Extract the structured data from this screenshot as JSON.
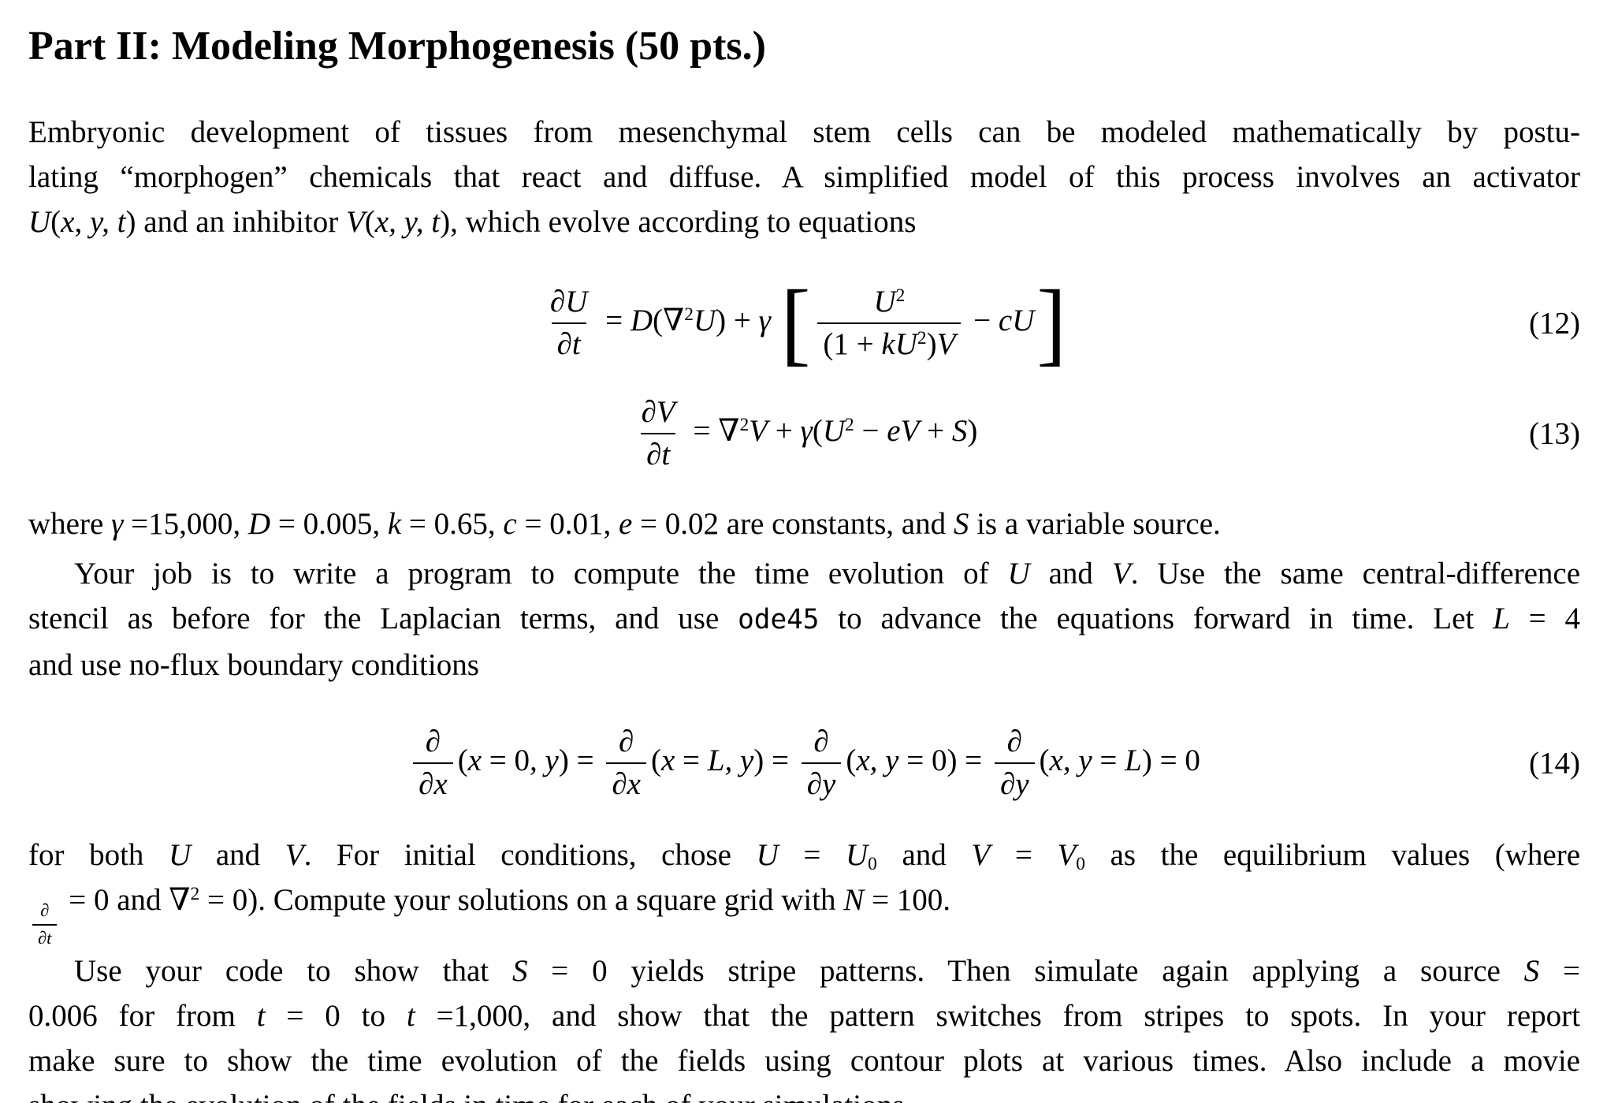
{
  "title": "Part II: Modeling Morphogenesis (50 pts.)",
  "intro": {
    "lines": [
      [
        {
          "t": "Embryonic development of tissues from mesenchymal stem cells can be modeled mathematically by postu-",
          "s": "rm"
        }
      ],
      [
        {
          "t": "lating “morphogen” chemicals that react and diffuse. A simplified model of this process involves an activator",
          "s": "rm"
        }
      ],
      [
        {
          "t": "U",
          "s": "it"
        },
        {
          "t": "(",
          "s": "rm"
        },
        {
          "t": "x, y, t",
          "s": "it"
        },
        {
          "t": ")",
          "s": "rm"
        },
        {
          "t": " and an inhibitor ",
          "s": "rm"
        },
        {
          "t": "V",
          "s": "it"
        },
        {
          "t": "(",
          "s": "rm"
        },
        {
          "t": "x, y, t",
          "s": "it"
        },
        {
          "t": ")",
          "s": "rm"
        },
        {
          "t": ", which evolve according to equations",
          "s": "rm"
        }
      ]
    ]
  },
  "equations": {
    "eq12": {
      "number": "(12)",
      "body": [
        {
          "frac": {
            "num": [
              {
                "t": "∂U",
                "s": "it"
              }
            ],
            "den": [
              {
                "t": "∂t",
                "s": "it"
              }
            ]
          }
        },
        {
          "t": " = ",
          "s": "rm"
        },
        {
          "t": "D",
          "s": "it"
        },
        {
          "t": "(∇",
          "s": "rm"
        },
        {
          "t": "2",
          "s": "sup"
        },
        {
          "t": "U",
          "s": "it"
        },
        {
          "t": ") + ",
          "s": "rm"
        },
        {
          "t": "γ ",
          "s": "it"
        },
        {
          "t": "[",
          "s": "bigbr"
        },
        {
          "frac": {
            "num": [
              {
                "t": "U",
                "s": "it"
              },
              {
                "t": "2",
                "s": "sup"
              }
            ],
            "den": [
              {
                "t": "(1 + ",
                "s": "rm"
              },
              {
                "t": "kU",
                "s": "it"
              },
              {
                "t": "2",
                "s": "sup"
              },
              {
                "t": ")",
                "s": "rm"
              },
              {
                "t": "V",
                "s": "it"
              }
            ]
          }
        },
        {
          "t": " − ",
          "s": "rm"
        },
        {
          "t": "cU",
          "s": "it"
        },
        {
          "t": "]",
          "s": "bigbr"
        }
      ]
    },
    "eq13": {
      "number": "(13)",
      "body": [
        {
          "frac": {
            "num": [
              {
                "t": "∂V",
                "s": "it"
              }
            ],
            "den": [
              {
                "t": "∂t",
                "s": "it"
              }
            ]
          }
        },
        {
          "t": " = ∇",
          "s": "rm"
        },
        {
          "t": "2",
          "s": "sup"
        },
        {
          "t": "V",
          "s": "it"
        },
        {
          "t": " + ",
          "s": "rm"
        },
        {
          "t": "γ",
          "s": "it"
        },
        {
          "t": "(",
          "s": "rm"
        },
        {
          "t": "U",
          "s": "it"
        },
        {
          "t": "2",
          "s": "sup"
        },
        {
          "t": " − ",
          "s": "rm"
        },
        {
          "t": "eV",
          "s": "it"
        },
        {
          "t": " + ",
          "s": "rm"
        },
        {
          "t": "S",
          "s": "it"
        },
        {
          "t": ")",
          "s": "rm"
        }
      ]
    },
    "eq14": {
      "number": "(14)",
      "body": [
        {
          "frac": {
            "num": [
              {
                "t": "∂",
                "s": "it"
              }
            ],
            "den": [
              {
                "t": "∂x",
                "s": "it"
              }
            ]
          }
        },
        {
          "t": "(",
          "s": "rm"
        },
        {
          "t": "x",
          "s": "it"
        },
        {
          "t": " = 0",
          "s": "rm"
        },
        {
          "t": ", y",
          "s": "it"
        },
        {
          "t": ") = ",
          "s": "rm"
        },
        {
          "frac": {
            "num": [
              {
                "t": "∂",
                "s": "it"
              }
            ],
            "den": [
              {
                "t": "∂x",
                "s": "it"
              }
            ]
          }
        },
        {
          "t": "(",
          "s": "rm"
        },
        {
          "t": "x",
          "s": "it"
        },
        {
          "t": " = ",
          "s": "rm"
        },
        {
          "t": "L, y",
          "s": "it"
        },
        {
          "t": ") = ",
          "s": "rm"
        },
        {
          "frac": {
            "num": [
              {
                "t": "∂",
                "s": "it"
              }
            ],
            "den": [
              {
                "t": "∂y",
                "s": "it"
              }
            ]
          }
        },
        {
          "t": "(",
          "s": "rm"
        },
        {
          "t": "x, y",
          "s": "it"
        },
        {
          "t": " = 0) = ",
          "s": "rm"
        },
        {
          "frac": {
            "num": [
              {
                "t": "∂",
                "s": "it"
              }
            ],
            "den": [
              {
                "t": "∂y",
                "s": "it"
              }
            ]
          }
        },
        {
          "t": "(",
          "s": "rm"
        },
        {
          "t": "x, y",
          "s": "it"
        },
        {
          "t": " = ",
          "s": "rm"
        },
        {
          "t": "L",
          "s": "it"
        },
        {
          "t": ") = 0",
          "s": "rm"
        }
      ]
    }
  },
  "constants": {
    "segs": [
      {
        "t": "where ",
        "s": "rm"
      },
      {
        "t": "γ",
        "s": "it"
      },
      {
        "t": " =15,000, ",
        "s": "rm"
      },
      {
        "t": "D",
        "s": "it"
      },
      {
        "t": " = 0.005, ",
        "s": "rm"
      },
      {
        "t": "k",
        "s": "it"
      },
      {
        "t": " = 0.65, ",
        "s": "rm"
      },
      {
        "t": "c",
        "s": "it"
      },
      {
        "t": " = 0.01, ",
        "s": "rm"
      },
      {
        "t": "e",
        "s": "it"
      },
      {
        "t": " = 0.02 are constants, and ",
        "s": "rm"
      },
      {
        "t": "S",
        "s": "it"
      },
      {
        "t": " is a variable source.",
        "s": "rm"
      }
    ]
  },
  "job": {
    "lines": [
      [
        {
          "t": "Your job is to write a program to compute the time evolution of ",
          "s": "rm"
        },
        {
          "t": "U",
          "s": "it"
        },
        {
          "t": " and ",
          "s": "rm"
        },
        {
          "t": "V",
          "s": "it"
        },
        {
          "t": ". Use the same central-difference",
          "s": "rm"
        }
      ],
      [
        {
          "t": "stencil as before for the Laplacian terms, and use ",
          "s": "rm"
        },
        {
          "t": "ode45",
          "s": "tt"
        },
        {
          "t": " to advance the equations forward in time. Let ",
          "s": "rm"
        },
        {
          "t": "L",
          "s": "it"
        },
        {
          "t": " = 4",
          "s": "rm"
        }
      ],
      [
        {
          "t": "and use no-flux boundary conditions",
          "s": "rm"
        }
      ]
    ]
  },
  "initial": {
    "lines": [
      [
        {
          "t": "for both ",
          "s": "rm"
        },
        {
          "t": "U",
          "s": "it"
        },
        {
          "t": " and ",
          "s": "rm"
        },
        {
          "t": "V",
          "s": "it"
        },
        {
          "t": ". For initial conditions, chose ",
          "s": "rm"
        },
        {
          "t": "U",
          "s": "it"
        },
        {
          "t": " = ",
          "s": "rm"
        },
        {
          "t": "U",
          "s": "it"
        },
        {
          "t": "0",
          "s": "sub"
        },
        {
          "t": " and ",
          "s": "rm"
        },
        {
          "t": "V",
          "s": "it"
        },
        {
          "t": " = ",
          "s": "rm"
        },
        {
          "t": "V",
          "s": "it"
        },
        {
          "t": "0",
          "s": "sub"
        },
        {
          "t": " as the equilibrium values (where",
          "s": "rm"
        }
      ],
      [
        {
          "frac": {
            "num": [
              {
                "t": "∂",
                "s": "it"
              }
            ],
            "den": [
              {
                "t": "∂t",
                "s": "it"
              }
            ]
          },
          "s": "sfrac"
        },
        {
          "t": " = 0 and ∇",
          "s": "rm"
        },
        {
          "t": "2",
          "s": "sup"
        },
        {
          "t": " = 0). Compute your solutions on a square grid with ",
          "s": "rm"
        },
        {
          "t": "N",
          "s": "it"
        },
        {
          "t": " = 100.",
          "s": "rm"
        }
      ]
    ]
  },
  "usage": {
    "lines": [
      [
        {
          "t": "Use your code to show that ",
          "s": "rm"
        },
        {
          "t": "S",
          "s": "it"
        },
        {
          "t": " = 0 yields stripe patterns. Then simulate again applying a source ",
          "s": "rm"
        },
        {
          "t": "S",
          "s": "it"
        },
        {
          "t": " =",
          "s": "rm"
        }
      ],
      [
        {
          "t": "0.006 for from ",
          "s": "rm"
        },
        {
          "t": "t",
          "s": "it"
        },
        {
          "t": " = 0 to ",
          "s": "rm"
        },
        {
          "t": "t",
          "s": "it"
        },
        {
          "t": " =1,000, and show that the pattern switches from stripes to spots. In your report",
          "s": "rm"
        }
      ],
      [
        {
          "t": "make sure to show the time evolution of the fields using contour plots at various times. Also include a movie",
          "s": "rm"
        }
      ],
      [
        {
          "t": "showing the evolution of the fields in time for each of your simulations.",
          "s": "rm"
        }
      ]
    ]
  }
}
